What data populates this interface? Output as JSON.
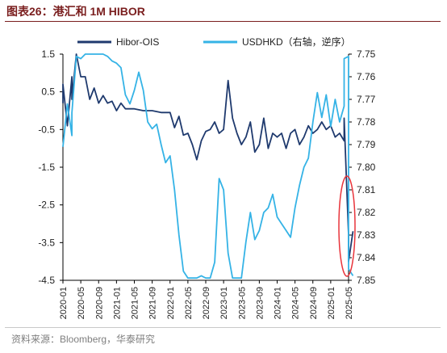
{
  "title": "图表26：港汇和 1M HIBOR",
  "source": "资料来源：Bloomberg，华泰研究",
  "chart_data": {
    "type": "line",
    "legend_position": "top",
    "grid": false,
    "x_ticks": [
      "2020-01",
      "2020-05",
      "2020-09",
      "2021-01",
      "2021-05",
      "2021-09",
      "2022-01",
      "2022-05",
      "2022-09",
      "2023-01",
      "2023-05",
      "2023-09",
      "2024-01",
      "2024-05",
      "2024-09",
      "2025-01",
      "2025-05"
    ],
    "left_axis": {
      "range": [
        -4.5,
        1.5
      ],
      "ticks": [
        "1.5",
        "0.5",
        "-0.5",
        "-1.5",
        "-2.5",
        "-3.5",
        "-4.5"
      ]
    },
    "right_axis": {
      "range": [
        7.75,
        7.85
      ],
      "inverted": true,
      "ticks": [
        "7.75",
        "7.76",
        "7.77",
        "7.78",
        "7.79",
        "7.80",
        "7.81",
        "7.82",
        "7.83",
        "7.84",
        "7.85"
      ]
    },
    "series": [
      {
        "name": "Hibor-OIS",
        "axis": "left",
        "color": "#1f3a6e",
        "points": [
          [
            "2020-01",
            0.2
          ],
          [
            "2020-01",
            0.7
          ],
          [
            "2020-02",
            -0.4
          ],
          [
            "2020-03",
            0.9
          ],
          [
            "2020-03",
            0.3
          ],
          [
            "2020-04",
            1.5
          ],
          [
            "2020-05",
            0.9
          ],
          [
            "2020-06",
            0.9
          ],
          [
            "2020-07",
            0.3
          ],
          [
            "2020-08",
            0.6
          ],
          [
            "2020-09",
            0.2
          ],
          [
            "2020-10",
            0.4
          ],
          [
            "2020-11",
            0.2
          ],
          [
            "2020-12",
            0.25
          ],
          [
            "2021-01",
            0.0
          ],
          [
            "2021-02",
            0.2
          ],
          [
            "2021-03",
            0.05
          ],
          [
            "2021-05",
            0.05
          ],
          [
            "2021-07",
            0.0
          ],
          [
            "2021-09",
            0.0
          ],
          [
            "2021-11",
            -0.05
          ],
          [
            "2022-01",
            -0.05
          ],
          [
            "2022-02",
            -0.45
          ],
          [
            "2022-03",
            -0.15
          ],
          [
            "2022-04",
            -0.65
          ],
          [
            "2022-05",
            -0.6
          ],
          [
            "2022-06",
            -0.9
          ],
          [
            "2022-07",
            -1.3
          ],
          [
            "2022-08",
            -0.8
          ],
          [
            "2022-09",
            -0.55
          ],
          [
            "2022-10",
            -0.5
          ],
          [
            "2022-11",
            -0.3
          ],
          [
            "2022-12",
            -0.6
          ],
          [
            "2023-01",
            -0.5
          ],
          [
            "2023-02",
            0.8
          ],
          [
            "2023-03",
            -0.2
          ],
          [
            "2023-04",
            -0.6
          ],
          [
            "2023-05",
            -0.9
          ],
          [
            "2023-06",
            -0.7
          ],
          [
            "2023-07",
            -0.3
          ],
          [
            "2023-08",
            -1.1
          ],
          [
            "2023-09",
            -0.9
          ],
          [
            "2023-10",
            -0.2
          ],
          [
            "2023-11",
            -1.0
          ],
          [
            "2023-12",
            -0.6
          ],
          [
            "2024-01",
            -0.7
          ],
          [
            "2024-02",
            -0.6
          ],
          [
            "2024-03",
            -1.0
          ],
          [
            "2024-04",
            -0.6
          ],
          [
            "2024-05",
            -0.5
          ],
          [
            "2024-06",
            -0.9
          ],
          [
            "2024-07",
            -0.7
          ],
          [
            "2024-08",
            -0.4
          ],
          [
            "2024-09",
            -0.6
          ],
          [
            "2024-10",
            -0.5
          ],
          [
            "2024-11",
            -0.3
          ],
          [
            "2024-12",
            -0.5
          ],
          [
            "2025-01",
            -0.4
          ],
          [
            "2025-02",
            -0.7
          ],
          [
            "2025-03",
            -0.6
          ],
          [
            "2025-04",
            -0.8
          ],
          [
            "2025-04",
            -0.2
          ],
          [
            "2025-05",
            -3.3
          ],
          [
            "2025-05",
            -4.0
          ],
          [
            "2025-06",
            -3.2
          ]
        ]
      },
      {
        "name": "USDHKD（右轴，逆序）",
        "axis": "right",
        "color": "#35b3e6",
        "points": [
          [
            "2020-01",
            7.791
          ],
          [
            "2020-02",
            7.772
          ],
          [
            "2020-03",
            7.786
          ],
          [
            "2020-03",
            7.776
          ],
          [
            "2020-04",
            7.751
          ],
          [
            "2020-05",
            7.752
          ],
          [
            "2020-06",
            7.75
          ],
          [
            "2020-07",
            7.75
          ],
          [
            "2020-08",
            7.75
          ],
          [
            "2020-09",
            7.75
          ],
          [
            "2020-10",
            7.75
          ],
          [
            "2020-11",
            7.751
          ],
          [
            "2020-12",
            7.753
          ],
          [
            "2021-01",
            7.754
          ],
          [
            "2021-02",
            7.756
          ],
          [
            "2021-03",
            7.768
          ],
          [
            "2021-04",
            7.772
          ],
          [
            "2021-05",
            7.766
          ],
          [
            "2021-06",
            7.758
          ],
          [
            "2021-07",
            7.766
          ],
          [
            "2021-08",
            7.78
          ],
          [
            "2021-09",
            7.783
          ],
          [
            "2021-10",
            7.781
          ],
          [
            "2021-11",
            7.79
          ],
          [
            "2021-12",
            7.798
          ],
          [
            "2022-01",
            7.795
          ],
          [
            "2022-02",
            7.81
          ],
          [
            "2022-03",
            7.83
          ],
          [
            "2022-04",
            7.846
          ],
          [
            "2022-05",
            7.849
          ],
          [
            "2022-06",
            7.849
          ],
          [
            "2022-07",
            7.849
          ],
          [
            "2022-08",
            7.848
          ],
          [
            "2022-09",
            7.849
          ],
          [
            "2022-10",
            7.849
          ],
          [
            "2022-11",
            7.842
          ],
          [
            "2022-12",
            7.805
          ],
          [
            "2023-01",
            7.81
          ],
          [
            "2023-02",
            7.838
          ],
          [
            "2023-03",
            7.849
          ],
          [
            "2023-04",
            7.849
          ],
          [
            "2023-05",
            7.849
          ],
          [
            "2023-06",
            7.833
          ],
          [
            "2023-07",
            7.82
          ],
          [
            "2023-08",
            7.832
          ],
          [
            "2023-09",
            7.828
          ],
          [
            "2023-10",
            7.82
          ],
          [
            "2023-11",
            7.818
          ],
          [
            "2023-12",
            7.812
          ],
          [
            "2024-01",
            7.822
          ],
          [
            "2024-02",
            7.825
          ],
          [
            "2024-03",
            7.828
          ],
          [
            "2024-04",
            7.831
          ],
          [
            "2024-05",
            7.818
          ],
          [
            "2024-06",
            7.808
          ],
          [
            "2024-07",
            7.8
          ],
          [
            "2024-08",
            7.796
          ],
          [
            "2024-09",
            7.78
          ],
          [
            "2024-10",
            7.767
          ],
          [
            "2024-11",
            7.778
          ],
          [
            "2024-12",
            7.768
          ],
          [
            "2025-01",
            7.782
          ],
          [
            "2025-02",
            7.77
          ],
          [
            "2025-03",
            7.78
          ],
          [
            "2025-04",
            7.773
          ],
          [
            "2025-04",
            7.752
          ],
          [
            "2025-05",
            7.751
          ],
          [
            "2025-05",
            7.845
          ],
          [
            "2025-06",
            7.848
          ]
        ]
      }
    ]
  }
}
